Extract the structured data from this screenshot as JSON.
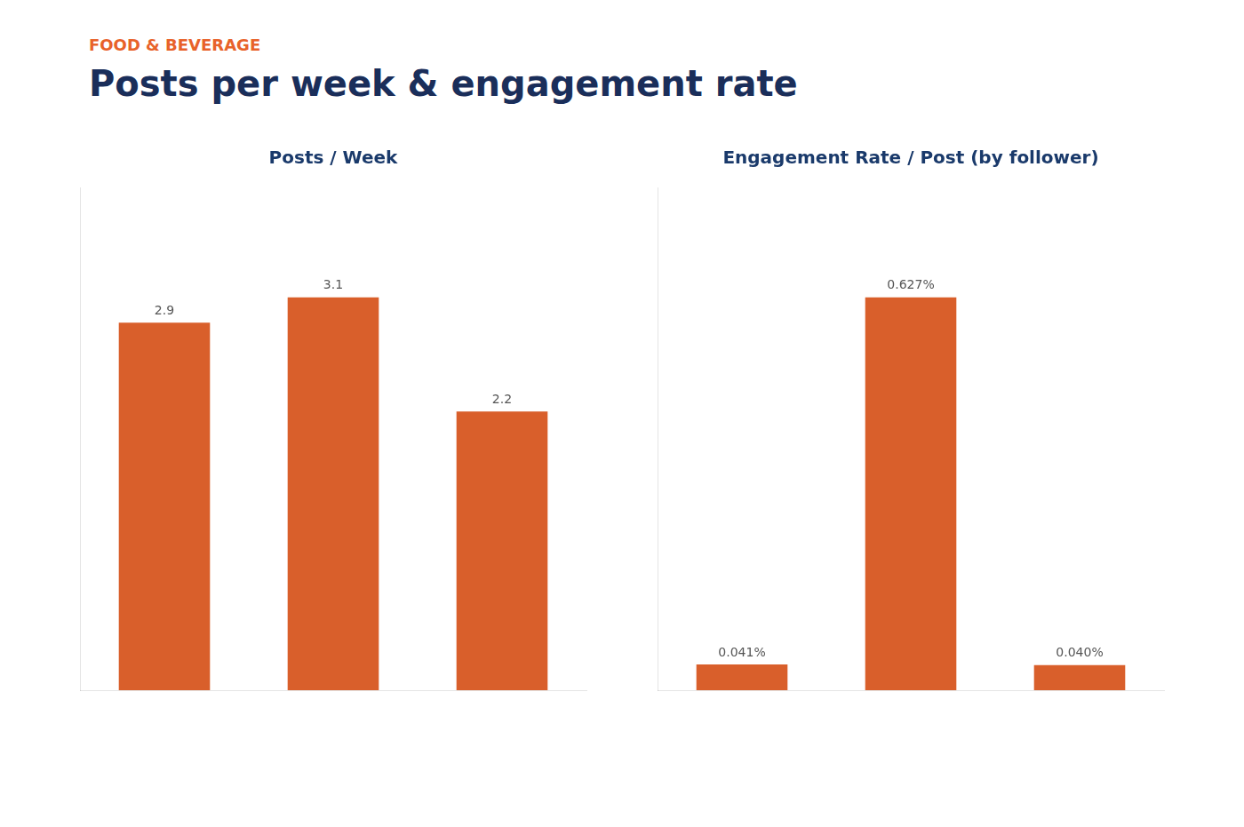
{
  "title": "Posts per week & engagement rate",
  "subtitle": "FOOD & BEVERAGE",
  "chart_data": [
    {
      "type": "bar",
      "title": "Posts / Week",
      "categories": [
        null,
        null,
        null
      ],
      "values": [
        2.9,
        3.1,
        2.2
      ],
      "color": "#D95F2B",
      "ylim": [
        0,
        3.968
      ],
      "data_labels": true,
      "tick_labels": false,
      "grid": false
    },
    {
      "type": "bar",
      "title": "Engagement Rate / Post (by follower)",
      "categories": [
        null,
        null,
        null
      ],
      "values": [
        0.041,
        0.627,
        0.04
      ],
      "value_labels": [
        "0.041%",
        "0.627%",
        "0.040%"
      ],
      "color": "#D95F2B",
      "ylim": [
        0,
        0.80256
      ],
      "data_labels": true,
      "tick_labels": false,
      "grid": false
    }
  ]
}
